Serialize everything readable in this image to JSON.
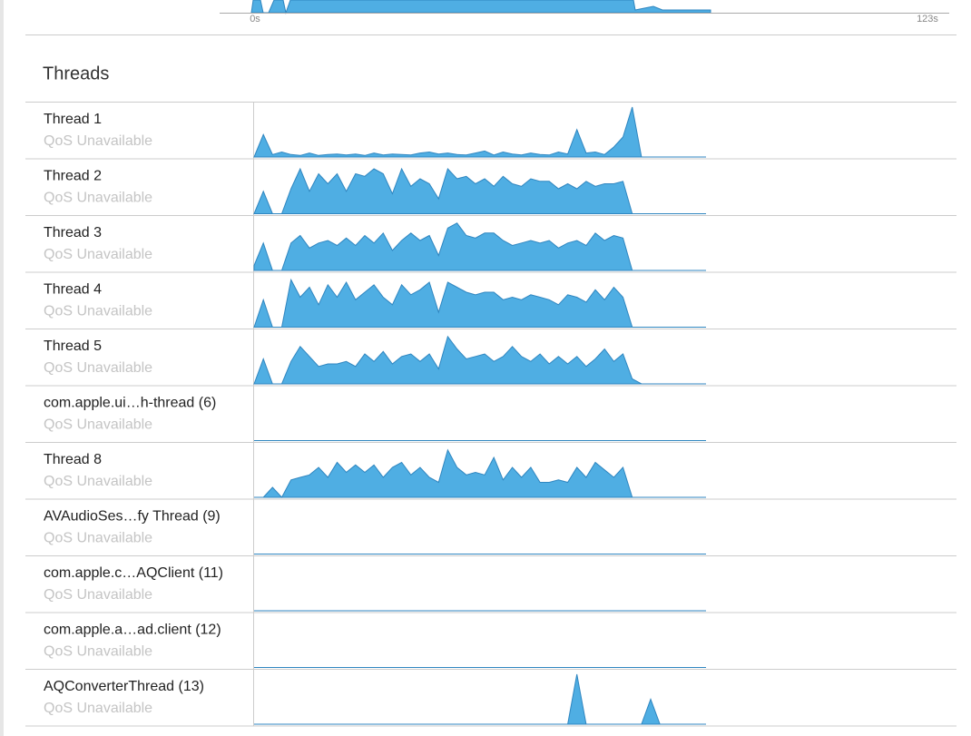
{
  "timeline": {
    "start_label": "0s",
    "end_label": "123s"
  },
  "section_title": "Threads",
  "threads": [
    {
      "name": "Thread 1",
      "qos": "QoS Unavailable",
      "activity": [
        0,
        45,
        5,
        10,
        5,
        3,
        8,
        3,
        5,
        6,
        4,
        6,
        3,
        8,
        4,
        6,
        5,
        4,
        8,
        10,
        6,
        8,
        5,
        4,
        8,
        12,
        4,
        10,
        6,
        4,
        8,
        5,
        4,
        10,
        6,
        55,
        8,
        10,
        5,
        20,
        40,
        100,
        0,
        0,
        0,
        0,
        0,
        0,
        0,
        0
      ]
    },
    {
      "name": "Thread 2",
      "qos": "QoS Unavailable",
      "activity": [
        0,
        45,
        0,
        0,
        50,
        90,
        45,
        80,
        60,
        80,
        45,
        80,
        75,
        90,
        80,
        40,
        90,
        55,
        70,
        60,
        30,
        90,
        70,
        75,
        60,
        70,
        55,
        75,
        60,
        55,
        70,
        65,
        65,
        50,
        60,
        50,
        65,
        55,
        60,
        60,
        65,
        0,
        0,
        0,
        0,
        0,
        0,
        0,
        0,
        0
      ]
    },
    {
      "name": "Thread 3",
      "qos": "QoS Unavailable",
      "activity": [
        10,
        55,
        0,
        0,
        55,
        70,
        45,
        55,
        60,
        50,
        65,
        50,
        70,
        55,
        75,
        40,
        60,
        75,
        60,
        70,
        30,
        85,
        95,
        70,
        65,
        75,
        75,
        60,
        50,
        55,
        60,
        55,
        60,
        45,
        55,
        60,
        50,
        75,
        60,
        70,
        65,
        0,
        0,
        0,
        0,
        0,
        0,
        0,
        0,
        0
      ]
    },
    {
      "name": "Thread 4",
      "qos": "QoS Unavailable",
      "activity": [
        0,
        55,
        0,
        0,
        95,
        60,
        80,
        45,
        85,
        60,
        90,
        55,
        70,
        85,
        60,
        45,
        85,
        65,
        75,
        90,
        30,
        90,
        80,
        70,
        65,
        70,
        70,
        55,
        60,
        55,
        65,
        60,
        55,
        45,
        65,
        60,
        50,
        75,
        55,
        80,
        60,
        0,
        0,
        0,
        0,
        0,
        0,
        0,
        0,
        0
      ]
    },
    {
      "name": "Thread 5",
      "qos": "QoS Unavailable",
      "activity": [
        0,
        50,
        0,
        0,
        45,
        75,
        55,
        35,
        40,
        40,
        45,
        35,
        60,
        45,
        65,
        40,
        55,
        60,
        45,
        60,
        30,
        95,
        70,
        50,
        55,
        60,
        45,
        55,
        75,
        55,
        45,
        60,
        40,
        55,
        40,
        55,
        35,
        50,
        70,
        45,
        60,
        10,
        0,
        0,
        0,
        0,
        0,
        0,
        0,
        0
      ]
    },
    {
      "name": "com.apple.ui…h-thread (6)",
      "qos": "QoS Unavailable",
      "activity": [
        0,
        0,
        0,
        0,
        0,
        0,
        0,
        0,
        0,
        0,
        0,
        0,
        0,
        0,
        0,
        0,
        0,
        0,
        0,
        0,
        0,
        0,
        0,
        0,
        0,
        0,
        0,
        0,
        0,
        0,
        0,
        0,
        0,
        0,
        0,
        0,
        0,
        0,
        0,
        0,
        0,
        0,
        0,
        0,
        0,
        0,
        0,
        0,
        0,
        0
      ]
    },
    {
      "name": "Thread 8",
      "qos": "QoS Unavailable",
      "activity": [
        0,
        0,
        20,
        0,
        35,
        40,
        45,
        60,
        40,
        70,
        50,
        65,
        50,
        65,
        40,
        60,
        70,
        45,
        60,
        40,
        30,
        95,
        60,
        45,
        50,
        45,
        80,
        35,
        60,
        40,
        60,
        30,
        30,
        35,
        30,
        60,
        40,
        70,
        55,
        40,
        60,
        0,
        0,
        0,
        0,
        0,
        0,
        0,
        0,
        0
      ]
    },
    {
      "name": "AVAudioSes…fy Thread (9)",
      "qos": "QoS Unavailable",
      "activity": [
        0,
        0,
        0,
        0,
        0,
        0,
        0,
        0,
        0,
        0,
        0,
        0,
        0,
        0,
        0,
        0,
        0,
        0,
        0,
        0,
        0,
        0,
        0,
        0,
        0,
        0,
        0,
        0,
        0,
        0,
        0,
        0,
        0,
        0,
        0,
        0,
        0,
        0,
        0,
        0,
        0,
        0,
        0,
        0,
        0,
        0,
        0,
        0,
        0,
        0
      ]
    },
    {
      "name": "com.apple.c…AQClient (11)",
      "qos": "QoS Unavailable",
      "activity": [
        0,
        0,
        0,
        0,
        0,
        0,
        0,
        0,
        0,
        0,
        0,
        0,
        0,
        0,
        0,
        0,
        0,
        0,
        0,
        0,
        0,
        0,
        0,
        0,
        0,
        0,
        0,
        0,
        0,
        0,
        0,
        0,
        0,
        0,
        0,
        0,
        0,
        0,
        0,
        0,
        0,
        0,
        0,
        0,
        0,
        0,
        0,
        0,
        0,
        0
      ]
    },
    {
      "name": "com.apple.a…ad.client (12)",
      "qos": "QoS Unavailable",
      "activity": [
        0,
        0,
        0,
        0,
        0,
        0,
        0,
        0,
        0,
        0,
        0,
        0,
        0,
        0,
        0,
        0,
        0,
        0,
        0,
        0,
        0,
        0,
        0,
        0,
        0,
        0,
        0,
        0,
        0,
        0,
        0,
        0,
        0,
        0,
        0,
        0,
        0,
        0,
        0,
        0,
        0,
        0,
        0,
        0,
        0,
        0,
        0,
        0,
        0,
        0
      ]
    },
    {
      "name": "AQConverterThread (13)",
      "qos": "QoS Unavailable",
      "activity": [
        0,
        0,
        0,
        0,
        0,
        0,
        0,
        0,
        0,
        0,
        0,
        0,
        0,
        0,
        0,
        0,
        0,
        0,
        0,
        0,
        0,
        0,
        0,
        0,
        0,
        0,
        0,
        0,
        0,
        0,
        0,
        0,
        0,
        0,
        0,
        100,
        0,
        0,
        0,
        0,
        0,
        0,
        0,
        50,
        0,
        0,
        0,
        0,
        0,
        0
      ]
    }
  ]
}
